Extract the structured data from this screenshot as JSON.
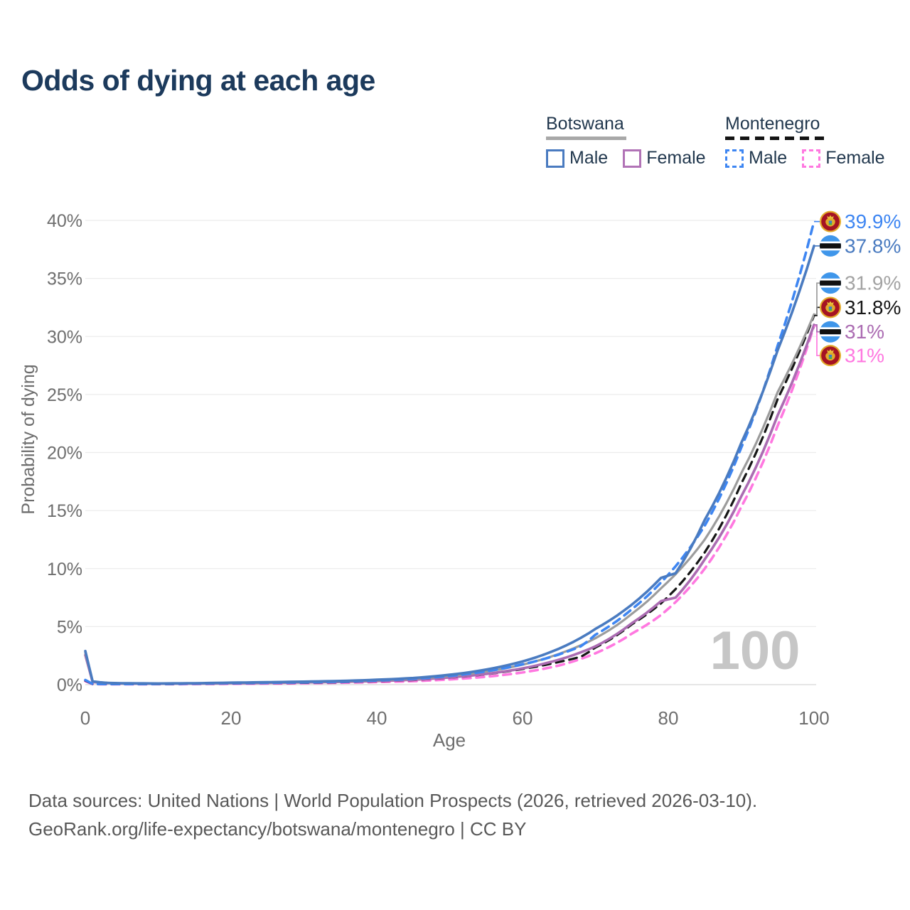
{
  "title": "Odds of dying at each age",
  "legend": {
    "botswana": {
      "name": "Botswana",
      "style": "solid",
      "male_label": "Male",
      "female_label": "Female",
      "male_color": "#4a7bc0",
      "female_color": "#b173b6"
    },
    "montenegro": {
      "name": "Montenegro",
      "style": "dashed",
      "male_label": "Male",
      "female_label": "Female",
      "male_color": "#3e86f2",
      "female_color": "#ff78e0"
    }
  },
  "footer": {
    "line1": "Data sources: United Nations | World Population Prospects (2026, retrieved 2026-03-10).",
    "line2": "GeoRank.org/life-expectancy/botswana/montenegro | CC BY"
  },
  "chart_data": {
    "type": "line",
    "title": "Odds of dying at each age",
    "xlabel": "Age",
    "ylabel": "Probability of dying",
    "xlim": [
      0,
      100
    ],
    "ylim": [
      0,
      40
    ],
    "grid": true,
    "watermark": "100",
    "x_ticks": [
      0,
      20,
      40,
      60,
      80,
      100
    ],
    "y_ticks": [
      {
        "v": 0,
        "label": "0%"
      },
      {
        "v": 5,
        "label": "5%"
      },
      {
        "v": 10,
        "label": "10%"
      },
      {
        "v": 15,
        "label": "15%"
      },
      {
        "v": 20,
        "label": "20%"
      },
      {
        "v": 25,
        "label": "25%"
      },
      {
        "v": 30,
        "label": "30%"
      },
      {
        "v": 35,
        "label": "35%"
      },
      {
        "v": 40,
        "label": "40%"
      }
    ],
    "series": [
      {
        "name": "Montenegro Female",
        "country": "Montenegro",
        "sex": "Female",
        "style": "dashed",
        "color": "#ff78e0",
        "label_color": "#ff78e0",
        "flag": "montenegro",
        "end_label": "31%",
        "end_value": 30.9,
        "label_slot": 28.35,
        "points": [
          [
            0,
            0.3
          ],
          [
            1,
            0.04
          ],
          [
            5,
            0.03
          ],
          [
            10,
            0.04
          ],
          [
            15,
            0.05
          ],
          [
            20,
            0.07
          ],
          [
            25,
            0.09
          ],
          [
            30,
            0.12
          ],
          [
            35,
            0.16
          ],
          [
            40,
            0.22
          ],
          [
            45,
            0.3
          ],
          [
            50,
            0.45
          ],
          [
            55,
            0.68
          ],
          [
            60,
            1.05
          ],
          [
            65,
            1.65
          ],
          [
            70,
            2.7
          ],
          [
            75,
            4.4
          ],
          [
            79,
            6.0
          ],
          [
            85,
            10.0
          ],
          [
            90,
            15.3
          ],
          [
            95,
            22.3
          ],
          [
            100,
            30.9
          ]
        ]
      },
      {
        "name": "Montenegro Both sexes",
        "country": "Montenegro",
        "sex": "Both",
        "style": "dashed",
        "color": "#161616",
        "label_color": "#161616",
        "flag": "montenegro",
        "end_label": "31.8%",
        "end_value": 31.8,
        "label_slot": 32.5,
        "points": [
          [
            0,
            0.35
          ],
          [
            1,
            0.05
          ],
          [
            5,
            0.04
          ],
          [
            10,
            0.05
          ],
          [
            15,
            0.07
          ],
          [
            20,
            0.1
          ],
          [
            25,
            0.13
          ],
          [
            30,
            0.16
          ],
          [
            35,
            0.21
          ],
          [
            40,
            0.29
          ],
          [
            45,
            0.4
          ],
          [
            50,
            0.6
          ],
          [
            55,
            0.9
          ],
          [
            60,
            1.35
          ],
          [
            65,
            1.95
          ],
          [
            68,
            2.4
          ],
          [
            70,
            3.2
          ],
          [
            75,
            5.2
          ],
          [
            79,
            7.0
          ],
          [
            85,
            11.4
          ],
          [
            90,
            17.3
          ],
          [
            95,
            24.6
          ],
          [
            100,
            31.8
          ]
        ]
      },
      {
        "name": "Botswana Female",
        "country": "Botswana",
        "sex": "Female",
        "style": "solid",
        "color": "#ab6cb2",
        "label_color": "#ab6cb2",
        "flag": "botswana",
        "end_label": "31%",
        "end_value": 31.0,
        "label_slot": 30.4,
        "points": [
          [
            0,
            2.55
          ],
          [
            1,
            0.22
          ],
          [
            5,
            0.09
          ],
          [
            10,
            0.08
          ],
          [
            15,
            0.09
          ],
          [
            20,
            0.12
          ],
          [
            25,
            0.15
          ],
          [
            30,
            0.19
          ],
          [
            35,
            0.24
          ],
          [
            40,
            0.31
          ],
          [
            45,
            0.42
          ],
          [
            50,
            0.62
          ],
          [
            55,
            0.92
          ],
          [
            60,
            1.4
          ],
          [
            65,
            2.15
          ],
          [
            70,
            3.3
          ],
          [
            75,
            5.3
          ],
          [
            79,
            7.2
          ],
          [
            81,
            7.5
          ],
          [
            85,
            10.8
          ],
          [
            90,
            16.2
          ],
          [
            95,
            23.2
          ],
          [
            100,
            31.0
          ]
        ]
      },
      {
        "name": "Botswana Both sexes",
        "country": "Botswana",
        "sex": "Both",
        "style": "solid",
        "color": "#9c9c9c",
        "label_color": "#a3a3a3",
        "flag": "botswana",
        "end_label": "31.9%",
        "end_value": 31.9,
        "label_slot": 34.6,
        "points": [
          [
            0,
            2.75
          ],
          [
            1,
            0.25
          ],
          [
            5,
            0.1
          ],
          [
            10,
            0.09
          ],
          [
            15,
            0.1
          ],
          [
            20,
            0.15
          ],
          [
            25,
            0.19
          ],
          [
            30,
            0.23
          ],
          [
            35,
            0.28
          ],
          [
            40,
            0.37
          ],
          [
            45,
            0.5
          ],
          [
            50,
            0.75
          ],
          [
            55,
            1.12
          ],
          [
            60,
            1.72
          ],
          [
            65,
            2.65
          ],
          [
            70,
            4.0
          ],
          [
            75,
            6.1
          ],
          [
            79,
            8.3
          ],
          [
            85,
            12.5
          ],
          [
            90,
            18.2
          ],
          [
            95,
            25.2
          ],
          [
            100,
            31.9
          ]
        ]
      },
      {
        "name": "Montenegro Male",
        "country": "Montenegro",
        "sex": "Male",
        "style": "dashed",
        "color": "#3e86f2",
        "label_color": "#3e86f2",
        "flag": "montenegro",
        "end_label": "39.9%",
        "end_value": 39.9,
        "label_slot": 39.9,
        "points": [
          [
            0,
            0.4
          ],
          [
            1,
            0.06
          ],
          [
            5,
            0.05
          ],
          [
            10,
            0.06
          ],
          [
            15,
            0.09
          ],
          [
            20,
            0.13
          ],
          [
            25,
            0.16
          ],
          [
            30,
            0.2
          ],
          [
            35,
            0.26
          ],
          [
            40,
            0.36
          ],
          [
            45,
            0.5
          ],
          [
            50,
            0.75
          ],
          [
            55,
            1.15
          ],
          [
            60,
            1.75
          ],
          [
            65,
            2.6
          ],
          [
            68,
            3.3
          ],
          [
            70,
            4.3
          ],
          [
            75,
            6.5
          ],
          [
            79,
            8.8
          ],
          [
            85,
            13.7
          ],
          [
            90,
            20.4
          ],
          [
            95,
            29.2
          ],
          [
            100,
            39.9
          ]
        ]
      },
      {
        "name": "Botswana Male",
        "country": "Botswana",
        "sex": "Male",
        "style": "solid",
        "color": "#4a7bc0",
        "label_color": "#4a7bc0",
        "flag": "botswana",
        "end_label": "37.8%",
        "end_value": 37.8,
        "label_slot": 37.8,
        "points": [
          [
            0,
            2.9
          ],
          [
            1,
            0.28
          ],
          [
            3,
            0.15
          ],
          [
            5,
            0.12
          ],
          [
            10,
            0.1
          ],
          [
            15,
            0.12
          ],
          [
            20,
            0.17
          ],
          [
            25,
            0.21
          ],
          [
            30,
            0.26
          ],
          [
            35,
            0.32
          ],
          [
            40,
            0.42
          ],
          [
            45,
            0.57
          ],
          [
            50,
            0.85
          ],
          [
            55,
            1.3
          ],
          [
            60,
            2.0
          ],
          [
            65,
            3.1
          ],
          [
            70,
            4.8
          ],
          [
            75,
            6.9
          ],
          [
            79,
            9.2
          ],
          [
            81,
            9.6
          ],
          [
            85,
            14.2
          ],
          [
            90,
            20.8
          ],
          [
            95,
            28.8
          ],
          [
            100,
            37.8
          ]
        ]
      }
    ]
  }
}
